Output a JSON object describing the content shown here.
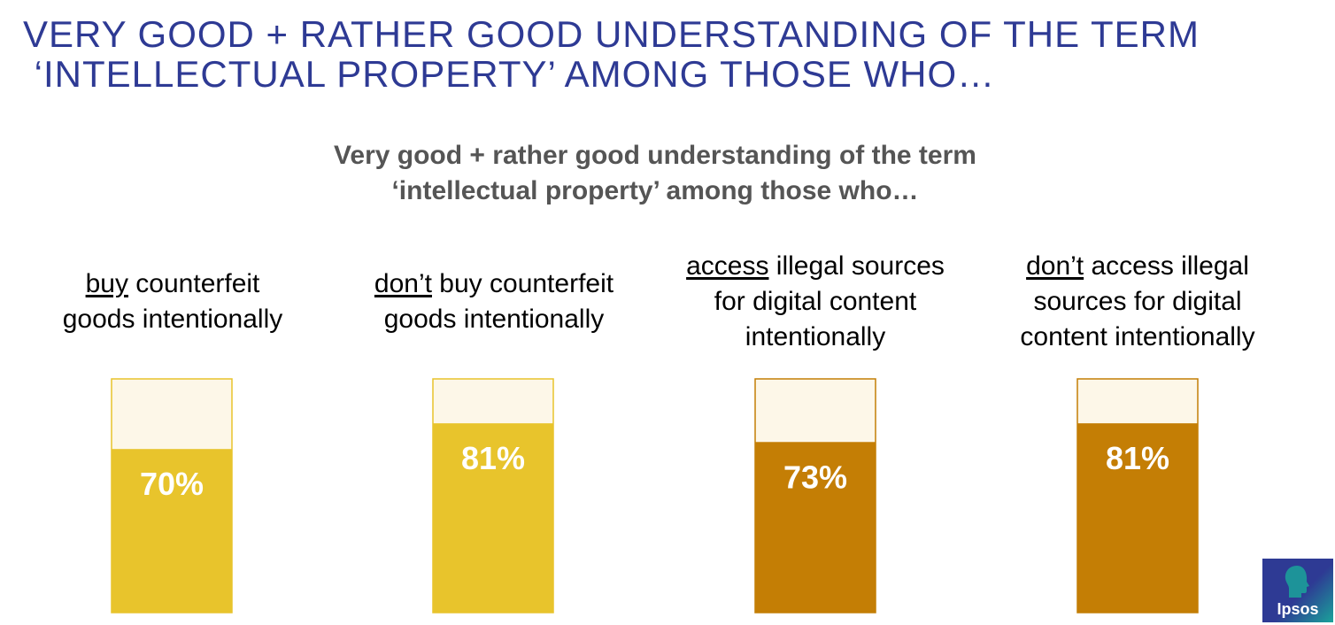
{
  "slide": {
    "title_line1": "VERY GOOD + RATHER GOOD UNDERSTANDING OF THE TERM",
    "title_line2": " ‘INTELLECTUAL PROPERTY’ AMONG THOSE WHO…"
  },
  "logo": {
    "text": "Ipsos"
  },
  "colors": {
    "title": "#2e3a94",
    "background_fill": "#fdf7e8",
    "yellow": "#e8c42c",
    "orange": "#c47e05"
  },
  "chart_data": {
    "type": "bar",
    "title_line1": "Very good + rather good understanding of the term",
    "title_line2": "‘intellectual property’ among those who…",
    "ylim": [
      0,
      100
    ],
    "categories": [
      {
        "underlined": "buy",
        "rest": " counterfeit",
        "line2": "goods intentionally",
        "line3": "",
        "value": 70,
        "label": "70%",
        "color": "#e8c42c"
      },
      {
        "underlined": "don’t",
        "rest": " buy counterfeit",
        "line2": "goods intentionally",
        "line3": "",
        "value": 81,
        "label": "81%",
        "color": "#e8c42c"
      },
      {
        "underlined": "access",
        "rest": " illegal sources",
        "line2": "for digital content",
        "line3": "intentionally",
        "value": 73,
        "label": "73%",
        "color": "#c47e05"
      },
      {
        "underlined": "don’t",
        "rest": " access illegal",
        "line2": "sources for digital",
        "line3": "content intentionally",
        "value": 81,
        "label": "81%",
        "color": "#c47e05"
      }
    ]
  }
}
